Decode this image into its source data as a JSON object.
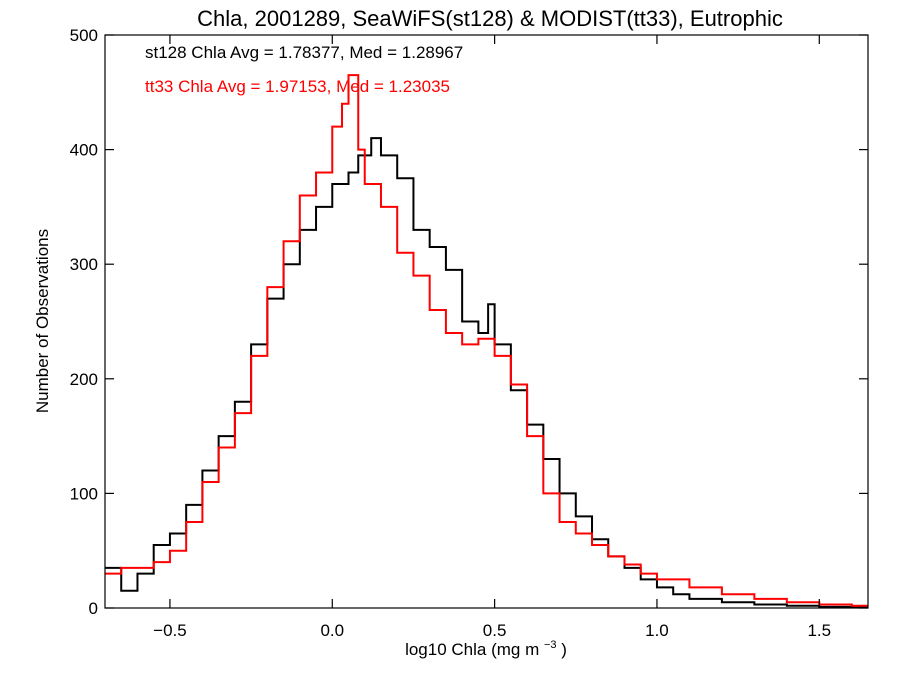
{
  "chart_data": {
    "type": "line",
    "step": true,
    "title": "Chla, 2001289, SeaWiFS(st128) & MODIST(tt33), Eutrophic",
    "xlabel": "log10 Chla (mg m",
    "xlabel_sup": "−3",
    "xlabel_close": ")",
    "ylabel": "Number of Observations",
    "xlim": [
      -0.7,
      1.65
    ],
    "ylim": [
      0,
      500
    ],
    "xticks": [
      -0.5,
      0.0,
      0.5,
      1.0,
      1.5
    ],
    "xtick_labels": [
      "−0.5",
      "0.0",
      "0.5",
      "1.0",
      "1.5"
    ],
    "yticks": [
      0,
      100,
      200,
      300,
      400,
      500
    ],
    "ytick_labels": [
      "0",
      "100",
      "200",
      "300",
      "400",
      "500"
    ],
    "annotations": [
      {
        "text": "st128 Chla Avg = 1.78377, Med = 1.28967",
        "color": "#000000"
      },
      {
        "text": "tt33 Chla Avg = 1.97153, Med = 1.23035",
        "color": "#ff0000"
      }
    ],
    "series": [
      {
        "id": "st128",
        "color": "#000000",
        "x": [
          -0.7,
          -0.65,
          -0.6,
          -0.55,
          -0.5,
          -0.45,
          -0.4,
          -0.35,
          -0.3,
          -0.25,
          -0.2,
          -0.15,
          -0.1,
          -0.05,
          0.0,
          0.05,
          0.08,
          0.12,
          0.15,
          0.2,
          0.25,
          0.3,
          0.35,
          0.4,
          0.45,
          0.48,
          0.5,
          0.55,
          0.6,
          0.65,
          0.7,
          0.75,
          0.8,
          0.85,
          0.9,
          0.95,
          1.0,
          1.05,
          1.1,
          1.2,
          1.3,
          1.4,
          1.5,
          1.6,
          1.65
        ],
        "y": [
          35,
          15,
          30,
          55,
          65,
          90,
          120,
          150,
          180,
          230,
          270,
          300,
          330,
          350,
          370,
          380,
          395,
          410,
          395,
          375,
          330,
          315,
          295,
          250,
          240,
          265,
          230,
          190,
          160,
          130,
          100,
          80,
          60,
          45,
          35,
          25,
          18,
          12,
          8,
          5,
          3,
          2,
          1,
          1,
          1
        ]
      },
      {
        "id": "tt33",
        "color": "#ff0000",
        "x": [
          -0.7,
          -0.65,
          -0.6,
          -0.55,
          -0.5,
          -0.45,
          -0.4,
          -0.35,
          -0.3,
          -0.25,
          -0.2,
          -0.15,
          -0.1,
          -0.05,
          0.0,
          0.03,
          0.05,
          0.08,
          0.1,
          0.15,
          0.2,
          0.25,
          0.3,
          0.35,
          0.4,
          0.45,
          0.5,
          0.55,
          0.6,
          0.65,
          0.7,
          0.75,
          0.8,
          0.85,
          0.9,
          0.95,
          1.0,
          1.1,
          1.2,
          1.3,
          1.4,
          1.5,
          1.6,
          1.65
        ],
        "y": [
          30,
          35,
          35,
          40,
          50,
          75,
          110,
          140,
          170,
          220,
          280,
          320,
          360,
          380,
          420,
          440,
          465,
          400,
          370,
          350,
          310,
          290,
          260,
          240,
          230,
          235,
          220,
          195,
          150,
          100,
          75,
          65,
          55,
          45,
          38,
          30,
          25,
          18,
          12,
          8,
          5,
          3,
          2,
          2
        ]
      }
    ]
  }
}
